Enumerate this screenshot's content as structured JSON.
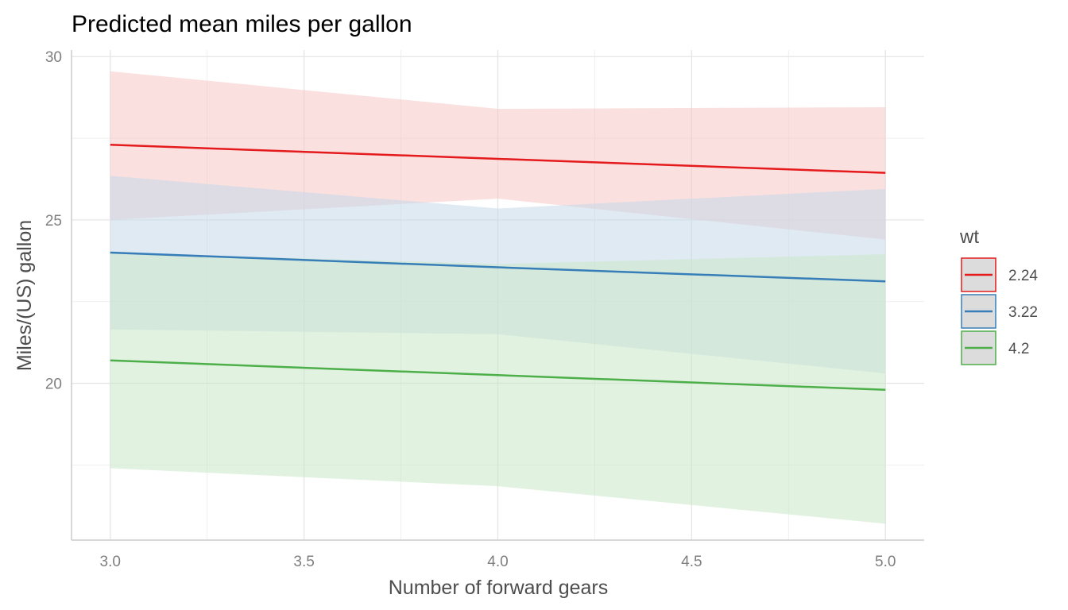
{
  "chart_data": {
    "type": "line",
    "title": "Predicted mean miles per gallon",
    "xlabel": "Number of forward gears",
    "ylabel": "Miles/(US) gallon",
    "xlim": [
      2.9,
      5.1
    ],
    "ylim": [
      15.2,
      30.2
    ],
    "x_ticks": [
      3.0,
      3.5,
      4.0,
      4.5,
      5.0
    ],
    "x_tick_labels": [
      "3.0",
      "3.5",
      "4.0",
      "4.5",
      "5.0"
    ],
    "y_ticks": [
      20,
      25,
      30
    ],
    "y_tick_labels": [
      "20",
      "25",
      "30"
    ],
    "grid": true,
    "legend": {
      "title": "wt",
      "position": "right"
    },
    "x": [
      3,
      4,
      5
    ],
    "series": [
      {
        "name": "2.24",
        "color": "#E41A1C",
        "fill": "#F8C6C7",
        "values": [
          27.3,
          26.87,
          26.44
        ],
        "lower": [
          25.0,
          25.65,
          24.4
        ],
        "upper": [
          29.55,
          28.4,
          28.45
        ]
      },
      {
        "name": "3.22",
        "color": "#377EB8",
        "fill": "#C5D8EA",
        "values": [
          24.0,
          23.55,
          23.12
        ],
        "lower": [
          21.65,
          21.5,
          20.3
        ],
        "upper": [
          26.35,
          25.35,
          25.95
        ]
      },
      {
        "name": "4.2",
        "color": "#4DAF4A",
        "fill": "#CBE7C9",
        "values": [
          20.7,
          20.25,
          19.8
        ],
        "lower": [
          17.4,
          16.85,
          15.7
        ],
        "upper": [
          24.0,
          23.65,
          23.95
        ]
      }
    ]
  }
}
